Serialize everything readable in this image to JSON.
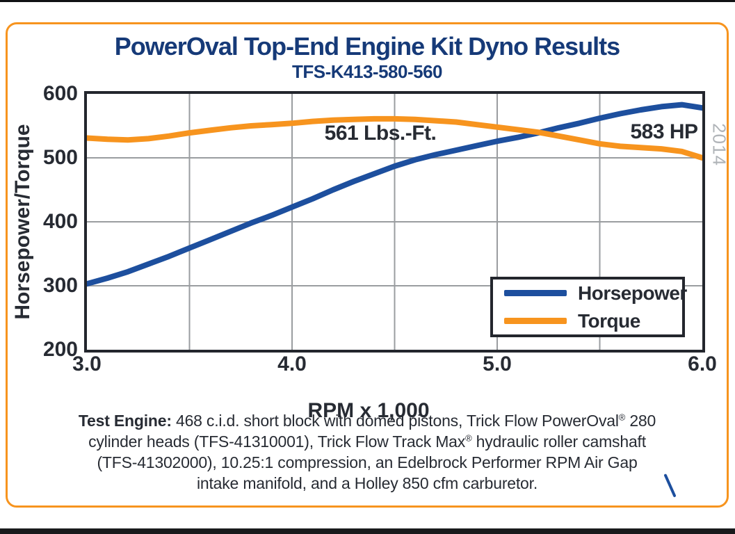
{
  "page": {
    "watermark": "2014"
  },
  "chart_data": {
    "type": "line",
    "title": "PowerOval Top-End Engine Kit Dyno Results",
    "subtitle": "TFS-K413-580-560",
    "xlabel": "RPM x 1,000",
    "ylabel": "Horsepower/Torque",
    "xlim": [
      3.0,
      6.0
    ],
    "ylim": [
      200,
      600
    ],
    "x_ticks": [
      {
        "value": 3.0,
        "label": "3.0"
      },
      {
        "value": 4.0,
        "label": "4.0"
      },
      {
        "value": 5.0,
        "label": "5.0"
      },
      {
        "value": 6.0,
        "label": "6.0"
      }
    ],
    "y_ticks": [
      {
        "value": 600,
        "label": "600"
      },
      {
        "value": 500,
        "label": "500"
      },
      {
        "value": 400,
        "label": "400"
      },
      {
        "value": 300,
        "label": "300"
      },
      {
        "value": 200,
        "label": "200"
      }
    ],
    "grid": {
      "x_lines": [
        3.5,
        4.0,
        4.5,
        5.0,
        5.5
      ],
      "y_lines": [
        500,
        400,
        300
      ],
      "color": "#9a9da0"
    },
    "x": [
      3.0,
      3.1,
      3.2,
      3.3,
      3.4,
      3.5,
      3.6,
      3.7,
      3.8,
      3.9,
      4.0,
      4.1,
      4.2,
      4.3,
      4.4,
      4.5,
      4.6,
      4.7,
      4.8,
      4.9,
      5.0,
      5.1,
      5.2,
      5.3,
      5.4,
      5.5,
      5.6,
      5.7,
      5.8,
      5.9,
      6.0
    ],
    "series": [
      {
        "name": "Horsepower",
        "color": "#1d4f9e",
        "values": [
          303,
          312,
          322,
          334,
          346,
          359,
          372,
          385,
          398,
          410,
          423,
          436,
          450,
          463,
          475,
          487,
          497,
          505,
          512,
          519,
          526,
          532,
          539,
          547,
          554,
          562,
          569,
          575,
          580,
          583,
          578
        ]
      },
      {
        "name": "Torque",
        "color": "#f7941e",
        "values": [
          531,
          529,
          528,
          530,
          534,
          539,
          543,
          547,
          550,
          552,
          554,
          557,
          559,
          560,
          561,
          561,
          560,
          558,
          556,
          552,
          548,
          544,
          540,
          534,
          528,
          522,
          518,
          516,
          514,
          510,
          500
        ]
      }
    ],
    "annotations": {
      "torque_peak": "561 Lbs.-Ft.",
      "horsepower_peak": "583 HP"
    },
    "legend_position": "inside bottom-right",
    "colors": {
      "title": "#163a78",
      "axis_text": "#272b33",
      "frame": "#23262d",
      "panel_border": "#f7941e"
    }
  },
  "footnote": {
    "lines": [
      [
        {
          "t": "Test Engine:",
          "b": true
        },
        {
          "t": " 468 c.i.d. short block with domed pistons, Trick Flow PowerOval"
        },
        {
          "t": "®",
          "sup": true
        },
        {
          "t": " 280"
        }
      ],
      [
        {
          "t": "cylinder heads (TFS-41310001), Trick Flow Track Max"
        },
        {
          "t": "®",
          "sup": true
        },
        {
          "t": " hydraulic roller camshaft"
        }
      ],
      [
        {
          "t": "(TFS-41302000), 10.25:1 compression, an Edelbrock Performer RPM Air Gap"
        }
      ],
      [
        {
          "t": "intake manifold, and a Holley 850 cfm carburetor."
        }
      ]
    ]
  }
}
